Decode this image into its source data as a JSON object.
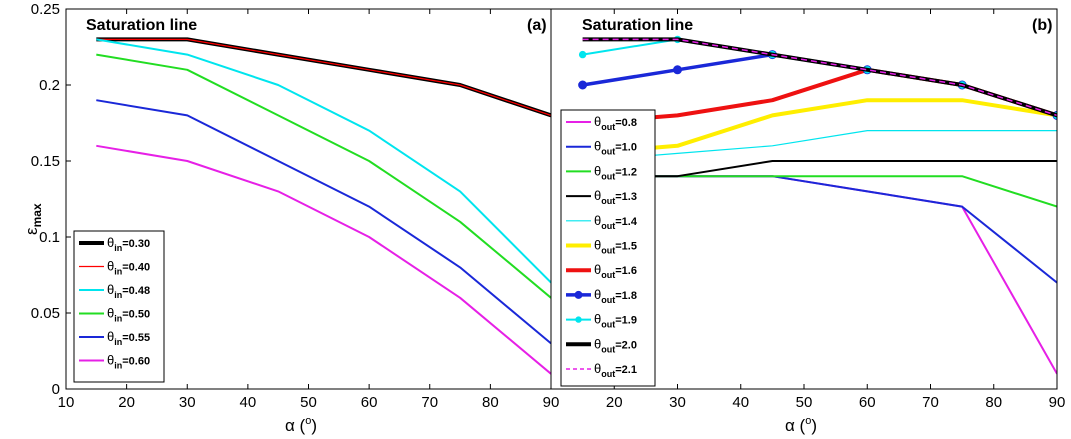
{
  "chart_data": [
    {
      "type": "line",
      "panel_label": "(a)",
      "title": "Saturation line",
      "xlabel": "α (°)",
      "ylabel": "ε_max",
      "xlim": [
        10,
        90
      ],
      "ylim": [
        0,
        0.25
      ],
      "xticks": [
        10,
        20,
        30,
        40,
        50,
        60,
        70,
        80,
        90
      ],
      "yticks": [
        0,
        0.05,
        0.1,
        0.15,
        0.2,
        0.25
      ],
      "xtick_labels": [
        "10",
        "20",
        "30",
        "40",
        "50",
        "60",
        "70",
        "80",
        "90"
      ],
      "ytick_labels": [
        "0",
        "0.05",
        "0.1",
        "0.15",
        "0.2",
        "0.25"
      ],
      "grid": false,
      "legend_position": "bottom-left",
      "series": [
        {
          "name": "θin=0.30",
          "legend_sub": "in",
          "legend_val": "=0.30",
          "color": "#000000",
          "style": "thick",
          "x": [
            15,
            30,
            45,
            60,
            75,
            90
          ],
          "y": [
            0.23,
            0.23,
            0.22,
            0.21,
            0.2,
            0.18
          ]
        },
        {
          "name": "θin=0.40",
          "legend_sub": "in",
          "legend_val": "=0.40",
          "color": "#ff0000",
          "style": "thin",
          "x": [
            15,
            30,
            45,
            60,
            75,
            90
          ],
          "y": [
            0.23,
            0.23,
            0.22,
            0.21,
            0.2,
            0.18
          ]
        },
        {
          "name": "θin=0.48",
          "legend_sub": "in",
          "legend_val": "=0.48",
          "color": "#00e5ee",
          "style": "normal",
          "x": [
            15,
            30,
            45,
            60,
            75,
            90
          ],
          "y": [
            0.23,
            0.22,
            0.2,
            0.17,
            0.13,
            0.07
          ]
        },
        {
          "name": "θin=0.50",
          "legend_sub": "in",
          "legend_val": "=0.50",
          "color": "#22dd22",
          "style": "normal",
          "x": [
            15,
            30,
            45,
            60,
            75,
            90
          ],
          "y": [
            0.22,
            0.21,
            0.18,
            0.15,
            0.11,
            0.06
          ]
        },
        {
          "name": "θin=0.55",
          "legend_sub": "in",
          "legend_val": "=0.55",
          "color": "#1a28d8",
          "style": "normal",
          "x": [
            15,
            30,
            45,
            60,
            75,
            90
          ],
          "y": [
            0.19,
            0.18,
            0.15,
            0.12,
            0.08,
            0.03
          ]
        },
        {
          "name": "θin=0.60",
          "legend_sub": "in",
          "legend_val": "=0.60",
          "color": "#e620e6",
          "style": "normal",
          "x": [
            15,
            30,
            45,
            60,
            75,
            90
          ],
          "y": [
            0.16,
            0.15,
            0.13,
            0.1,
            0.06,
            0.01
          ]
        }
      ]
    },
    {
      "type": "line",
      "panel_label": "(b)",
      "title": "Saturation line",
      "xlabel": "α (°)",
      "ylabel": "",
      "xlim": [
        10,
        90
      ],
      "ylim": [
        0,
        0.25
      ],
      "xticks": [
        20,
        30,
        40,
        50,
        60,
        70,
        80,
        90
      ],
      "yticks": [],
      "xtick_labels": [
        "20",
        "30",
        "40",
        "50",
        "60",
        "70",
        "80",
        "90"
      ],
      "ytick_labels": [],
      "grid": false,
      "legend_position": "left",
      "series": [
        {
          "name": "θout=0.8",
          "legend_sub": "out",
          "legend_val": "=0.8",
          "color": "#e620e6",
          "style": "normal",
          "x": [
            15,
            30,
            45,
            60,
            75,
            90
          ],
          "y": [
            0.14,
            0.14,
            0.14,
            0.13,
            0.12,
            0.01
          ]
        },
        {
          "name": "θout=1.0",
          "legend_sub": "out",
          "legend_val": "=1.0",
          "color": "#1a28d8",
          "style": "normal",
          "x": [
            15,
            30,
            45,
            60,
            75,
            90
          ],
          "y": [
            0.14,
            0.14,
            0.14,
            0.13,
            0.12,
            0.07
          ]
        },
        {
          "name": "θout=1.2",
          "legend_sub": "out",
          "legend_val": "=1.2",
          "color": "#22dd22",
          "style": "normal",
          "x": [
            15,
            30,
            45,
            60,
            75,
            90
          ],
          "y": [
            0.14,
            0.14,
            0.14,
            0.14,
            0.14,
            0.12
          ]
        },
        {
          "name": "θout=1.3",
          "legend_sub": "out",
          "legend_val": "=1.3",
          "color": "#000000",
          "style": "normal",
          "x": [
            15,
            30,
            45,
            60,
            75,
            90
          ],
          "y": [
            0.14,
            0.14,
            0.15,
            0.15,
            0.15,
            0.15
          ]
        },
        {
          "name": "θout=1.4",
          "legend_sub": "out",
          "legend_val": "=1.4",
          "color": "#00e5ee",
          "style": "thin",
          "x": [
            15,
            30,
            45,
            60,
            75,
            90
          ],
          "y": [
            0.15,
            0.155,
            0.16,
            0.17,
            0.17,
            0.17
          ]
        },
        {
          "name": "θout=1.5",
          "legend_sub": "out",
          "legend_val": "=1.5",
          "color": "#ffee00",
          "style": "thick",
          "x": [
            15,
            30,
            45,
            60,
            75,
            90
          ],
          "y": [
            0.155,
            0.16,
            0.18,
            0.19,
            0.19,
            0.18
          ]
        },
        {
          "name": "θout=1.6",
          "legend_sub": "out",
          "legend_val": "=1.6",
          "color": "#ee1111",
          "style": "thick",
          "x": [
            15,
            30,
            45,
            60,
            75,
            90
          ],
          "y": [
            0.175,
            0.18,
            0.19,
            0.21,
            0.2,
            0.18
          ]
        },
        {
          "name": "θout=1.8",
          "legend_sub": "out",
          "legend_val": "=1.8",
          "color": "#1a28d8",
          "style": "thick-marker",
          "x": [
            15,
            30,
            45,
            60,
            75,
            90
          ],
          "y": [
            0.2,
            0.21,
            0.22,
            0.21,
            0.2,
            0.18
          ]
        },
        {
          "name": "θout=1.9",
          "legend_sub": "out",
          "legend_val": "=1.9",
          "color": "#00e5ee",
          "style": "marker",
          "x": [
            15,
            30,
            45,
            60,
            75,
            90
          ],
          "y": [
            0.22,
            0.23,
            0.22,
            0.21,
            0.2,
            0.18
          ]
        },
        {
          "name": "θout=2.0",
          "legend_sub": "out",
          "legend_val": "=2.0",
          "color": "#000000",
          "style": "thick",
          "x": [
            15,
            30,
            45,
            60,
            75,
            90
          ],
          "y": [
            0.23,
            0.23,
            0.22,
            0.21,
            0.2,
            0.18
          ]
        },
        {
          "name": "θout=2.1",
          "legend_sub": "out",
          "legend_val": "=2.1",
          "color": "#e620e6",
          "style": "dashed",
          "x": [
            15,
            30,
            45,
            60,
            75,
            90
          ],
          "y": [
            0.23,
            0.23,
            0.22,
            0.21,
            0.2,
            0.18
          ]
        }
      ]
    }
  ]
}
